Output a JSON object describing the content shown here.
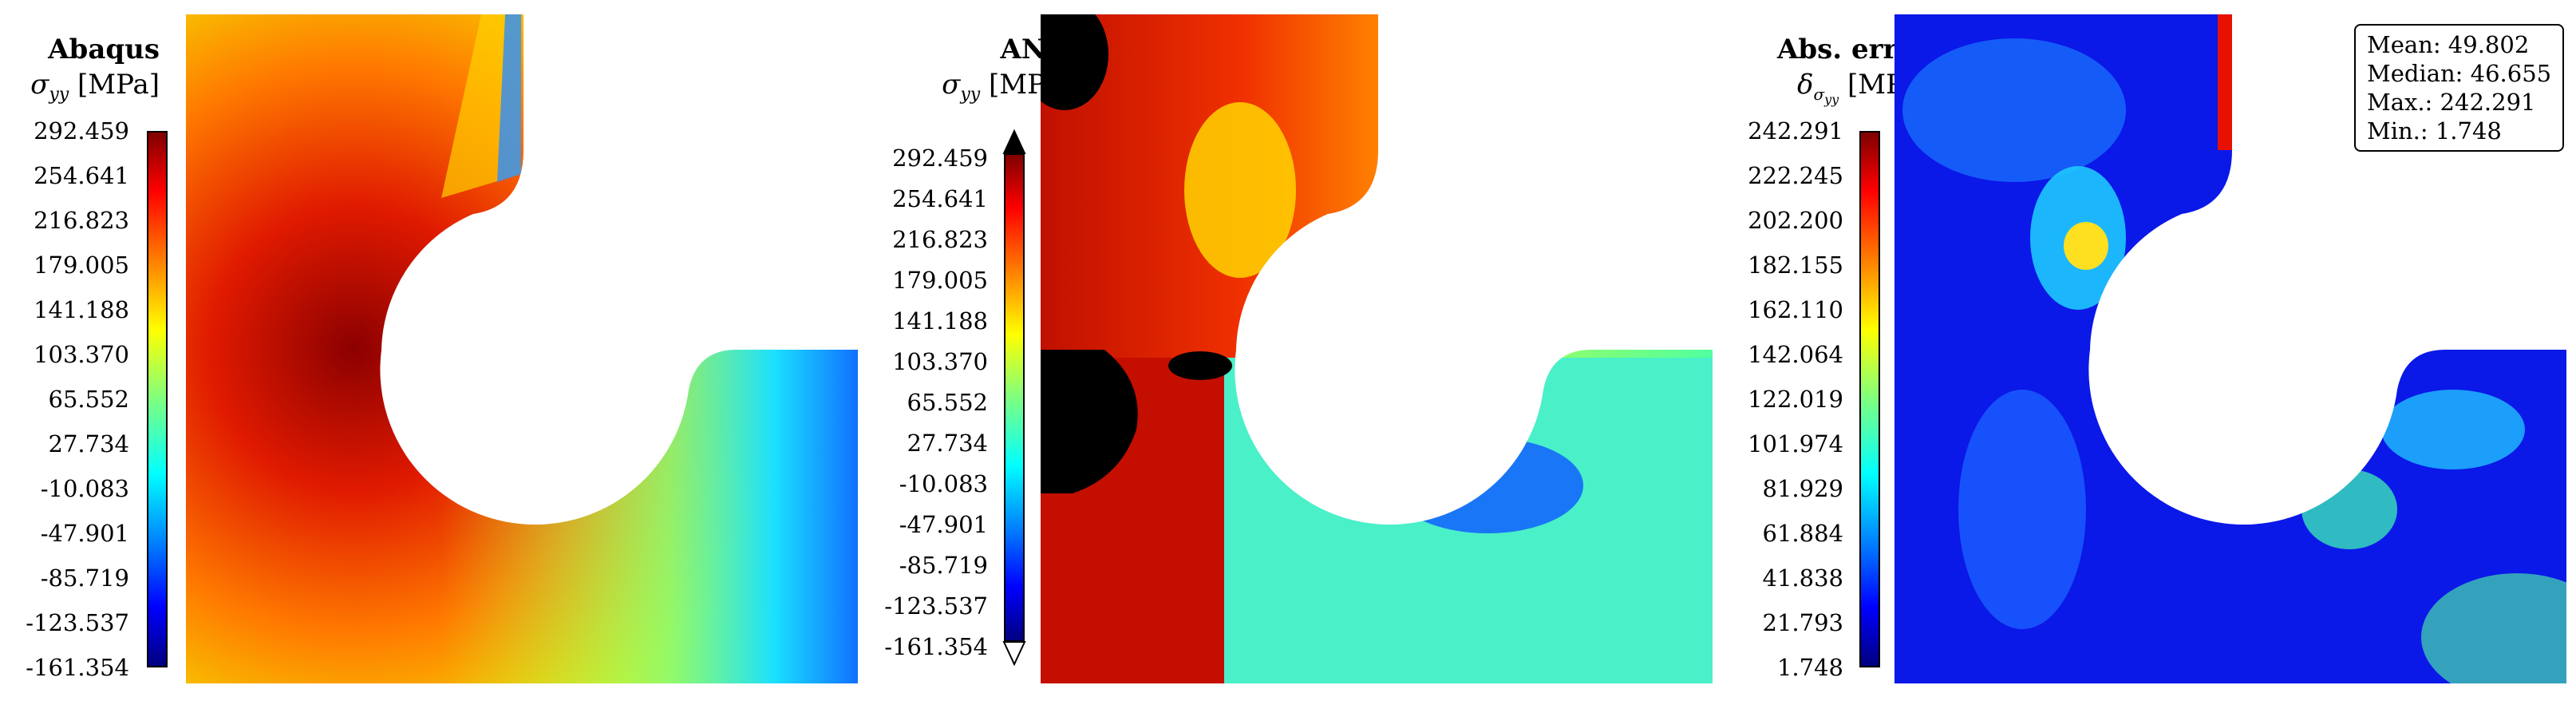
{
  "chart_data": [
    {
      "type": "heatmap",
      "title": "Abaqus",
      "quantity": "σyy [MPa]",
      "colorbar": {
        "ticks": [
          "292.459",
          "254.641",
          "216.823",
          "179.005",
          "141.188",
          "103.370",
          "65.552",
          "27.734",
          "-10.083",
          "-47.901",
          "-85.719",
          "-123.537",
          "-161.354"
        ],
        "range": [
          -161.354,
          292.459
        ]
      },
      "colormap": "jet"
    },
    {
      "type": "heatmap",
      "title": "ANN",
      "quantity": "σyy [MPa]",
      "colorbar": {
        "ticks": [
          "292.459",
          "254.641",
          "216.823",
          "179.005",
          "141.188",
          "103.370",
          "65.552",
          "27.734",
          "-10.083",
          "-47.901",
          "-85.719",
          "-123.537",
          "-161.354"
        ],
        "range": [
          -161.354,
          292.459
        ],
        "extend": "both"
      },
      "colormap": "jet"
    },
    {
      "type": "heatmap",
      "title": "Abs. error",
      "quantity": "δσyy [MPa]",
      "colorbar": {
        "ticks": [
          "242.291",
          "222.245",
          "202.200",
          "182.155",
          "162.110",
          "142.064",
          "122.019",
          "101.974",
          "81.929",
          "61.884",
          "41.838",
          "21.793",
          "1.748"
        ],
        "range": [
          1.748,
          242.291
        ]
      },
      "colormap": "jet",
      "stats": {
        "mean": "Mean: 49.802",
        "median": "Median: 46.655",
        "max": "Max.: 242.291",
        "min": "Min.: 1.748"
      }
    }
  ]
}
